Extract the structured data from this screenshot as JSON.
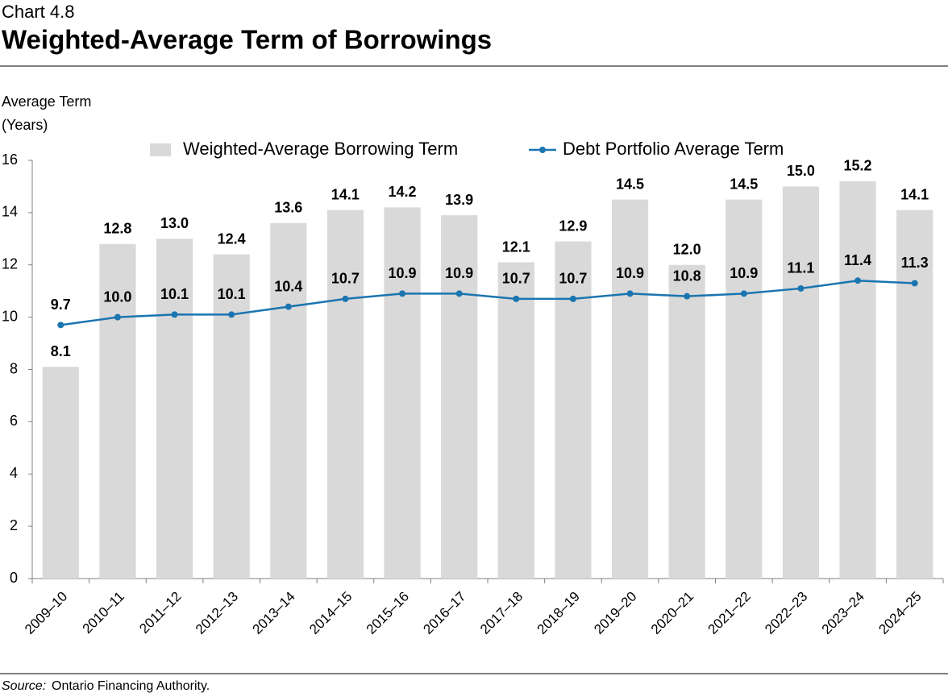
{
  "chart_data": {
    "type": "combo",
    "title": "Chart 4.8",
    "subtitle": "Weighted-Average Term of Borrowings",
    "ylabel": [
      "Average Term",
      "(Years)"
    ],
    "source_label": "Source:",
    "source": "Ontario Financing Authority.",
    "categories": [
      "2009–10",
      "2010–11",
      "2011–12",
      "2012–13",
      "2013–14",
      "2014–15",
      "2015–16",
      "2016–17",
      "2017–18",
      "2018–19",
      "2019–20",
      "2020–21",
      "2021–22",
      "2022–23",
      "2023–24",
      "2024–25"
    ],
    "series": [
      {
        "name": "Weighted-Average Borrowing Term",
        "type": "bar",
        "color": "#d9d9d9",
        "values": [
          8.1,
          12.8,
          13,
          12.4,
          13.6,
          14.1,
          14.2,
          13.9,
          12.1,
          12.9,
          14.5,
          12,
          14.5,
          15,
          15.2,
          14.1
        ],
        "value_labels": [
          "8.1",
          "12.8",
          "13.0",
          "12.4",
          "13.6",
          "14.1",
          "14.2",
          "13.9",
          "12.1",
          "12.9",
          "14.5",
          "12.0",
          "14.5",
          "15.0",
          "15.2",
          "14.1"
        ]
      },
      {
        "name": "Debt Portfolio Average Term",
        "type": "line",
        "color": "#1a75b0",
        "values": [
          9.7,
          10,
          10.1,
          10.1,
          10.4,
          10.7,
          10.9,
          10.9,
          10.7,
          10.7,
          10.9,
          10.8,
          10.9,
          11.1,
          11.4,
          11.3
        ],
        "value_labels": [
          "9.7",
          "10.0",
          "10.1",
          "10.1",
          "10.4",
          "10.7",
          "10.9",
          "10.9",
          "10.7",
          "10.7",
          "10.9",
          "10.8",
          "10.9",
          "11.1",
          "11.4",
          "11.3"
        ]
      }
    ],
    "ylim": [
      0,
      16
    ],
    "yticks": [
      0,
      2,
      4,
      6,
      8,
      10,
      12,
      14,
      16
    ],
    "grid": false,
    "legend": "top"
  }
}
